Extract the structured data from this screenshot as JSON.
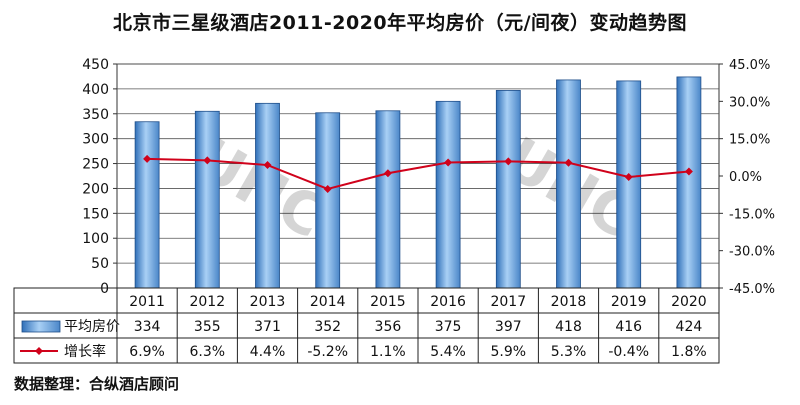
{
  "chart_data": {
    "type": "bar",
    "title": "北京市三星级酒店2011-2020年平均房价（元/间夜）变动趋势图",
    "categories": [
      "2011",
      "2012",
      "2013",
      "2014",
      "2015",
      "2016",
      "2017",
      "2018",
      "2019",
      "2020"
    ],
    "series": [
      {
        "name": "平均房价",
        "type": "bar",
        "axis": "left",
        "values": [
          334,
          355,
          371,
          352,
          356,
          375,
          397,
          418,
          416,
          424
        ],
        "labels": [
          "334",
          "355",
          "371",
          "352",
          "356",
          "375",
          "397",
          "418",
          "416",
          "424"
        ],
        "color": "#6fa8dc"
      },
      {
        "name": "增长率",
        "type": "line",
        "axis": "right",
        "values": [
          6.9,
          6.3,
          4.4,
          -5.2,
          1.1,
          5.4,
          5.9,
          5.3,
          -0.4,
          1.8
        ],
        "labels": [
          "6.9%",
          "6.3%",
          "4.4%",
          "-5.2%",
          "1.1%",
          "5.4%",
          "5.9%",
          "5.3%",
          "-0.4%",
          "1.8%"
        ],
        "color": "#d0021b"
      }
    ],
    "ylim_left": [
      0,
      450
    ],
    "yticks_left": [
      "0",
      "50",
      "100",
      "150",
      "200",
      "250",
      "300",
      "350",
      "400",
      "450"
    ],
    "ylim_right": [
      -45,
      45
    ],
    "yticks_right": [
      "-45.0%",
      "-30.0%",
      "-15.0%",
      "0.0%",
      "15.0%",
      "30.0%",
      "45.0%"
    ],
    "grid": true,
    "legend": "data-table-below",
    "watermark": "合纵酒店 UNITED HOTEL CONSULTANCY"
  },
  "source_note": "数据整理：合纵酒店顾问"
}
